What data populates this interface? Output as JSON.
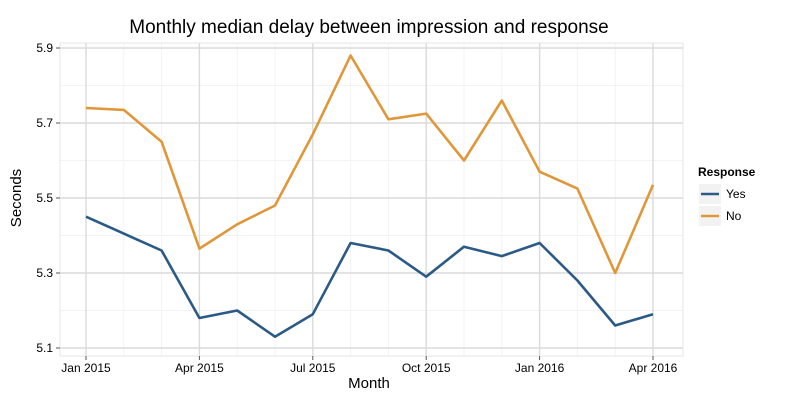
{
  "chart_data": {
    "type": "line",
    "title": "Monthly median delay between impression and response",
    "xlabel": "Month",
    "ylabel": "Seconds",
    "x": [
      "2015-01",
      "2015-02",
      "2015-03",
      "2015-04",
      "2015-05",
      "2015-06",
      "2015-07",
      "2015-08",
      "2015-09",
      "2015-10",
      "2015-11",
      "2015-12",
      "2016-01",
      "2016-02",
      "2016-03",
      "2016-04"
    ],
    "x_tick_labels": [
      "Jan 2015",
      "Apr 2015",
      "Jul 2015",
      "Oct 2015",
      "Jan 2016",
      "Apr 2016"
    ],
    "x_tick_indices": [
      0,
      3,
      6,
      9,
      12,
      15
    ],
    "ylim": [
      5.1,
      5.9
    ],
    "y_ticks": [
      5.1,
      5.3,
      5.5,
      5.7,
      5.9
    ],
    "y_tick_labels": [
      "5.1",
      "5.3",
      "5.5",
      "5.7",
      "5.9"
    ],
    "grid": true,
    "legend": {
      "title": "Response",
      "placement": "right"
    },
    "series": [
      {
        "name": "Yes",
        "color": "#2b5a87",
        "values": [
          5.45,
          5.405,
          5.36,
          5.18,
          5.2,
          5.13,
          5.19,
          5.38,
          5.36,
          5.29,
          5.37,
          5.345,
          5.38,
          5.28,
          5.16,
          5.19
        ]
      },
      {
        "name": "No",
        "color": "#e0973a",
        "values": [
          5.74,
          5.735,
          5.65,
          5.365,
          5.43,
          5.48,
          5.67,
          5.88,
          5.71,
          5.725,
          5.6,
          5.76,
          5.57,
          5.525,
          5.3,
          5.535
        ]
      }
    ]
  }
}
